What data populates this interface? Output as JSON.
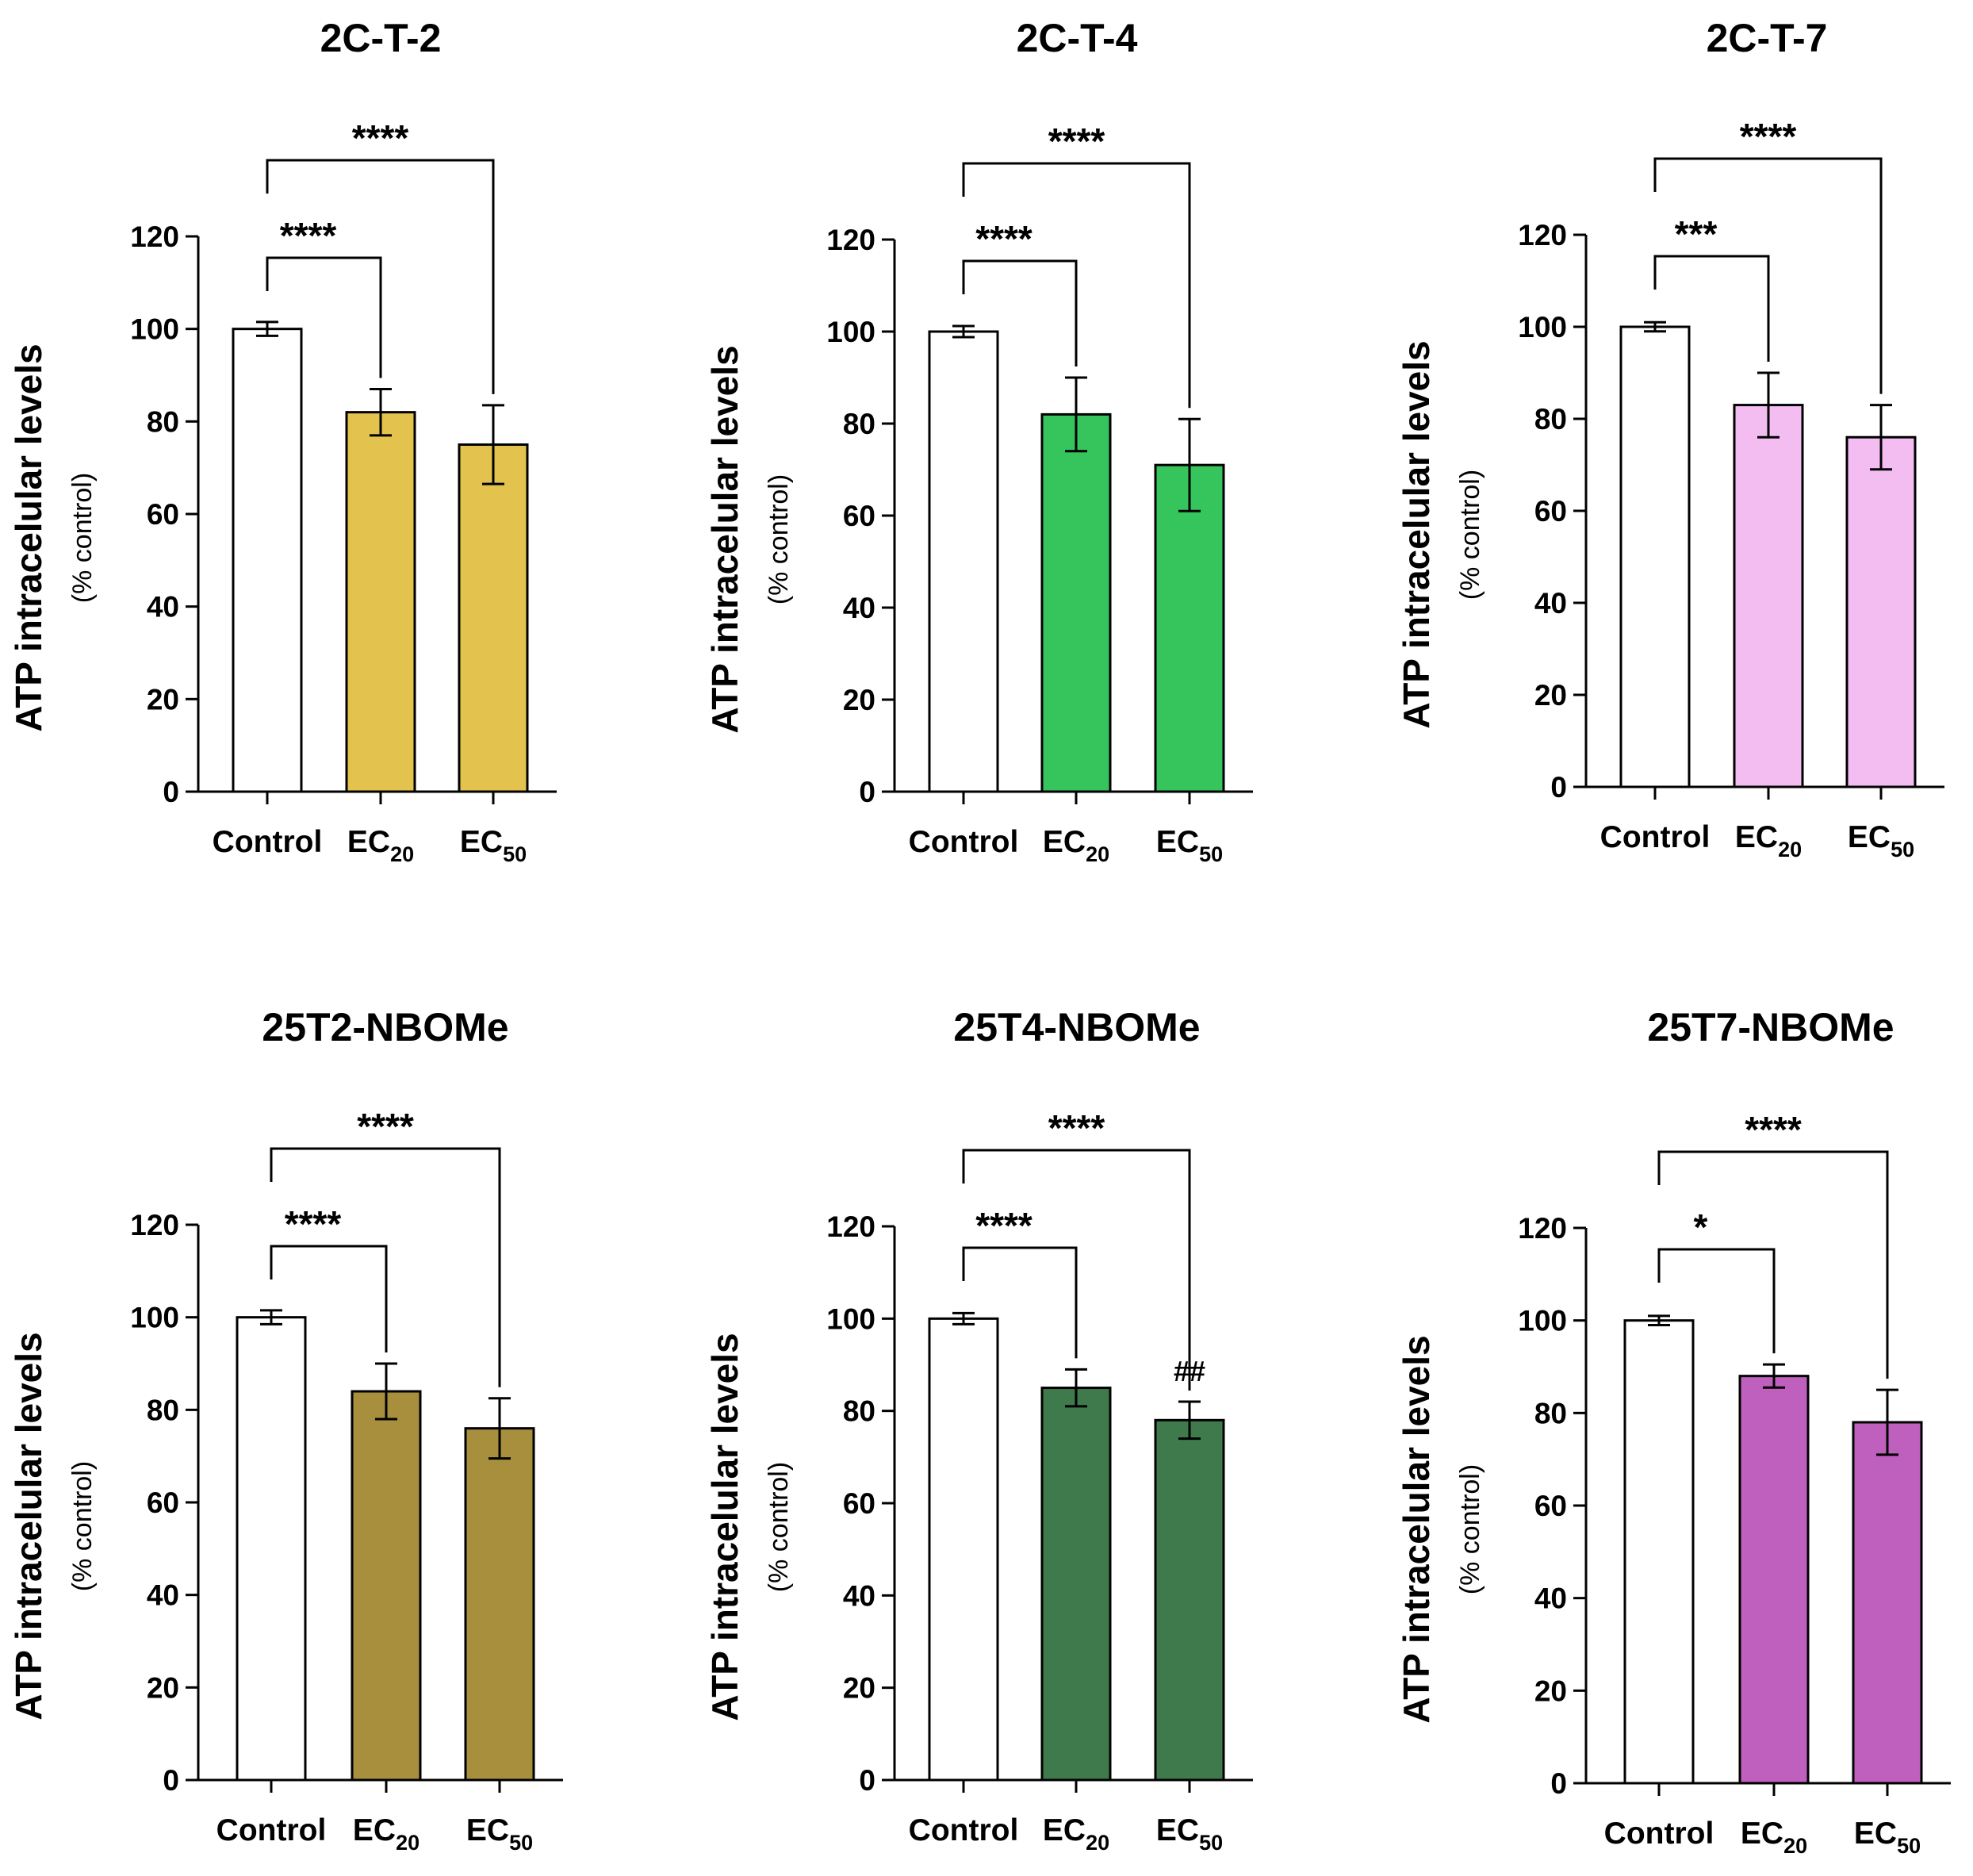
{
  "chart_data": [
    {
      "type": "bar",
      "title": "2C-T-2",
      "ylabel": "ATP intracelular levels",
      "ylabel_sub": "(% control)",
      "ylim": [
        0,
        120
      ],
      "yticks": [
        "0",
        "20",
        "40",
        "60",
        "80",
        "100",
        "120"
      ],
      "categories": [
        {
          "main": "Control",
          "sub": ""
        },
        {
          "main": "EC",
          "sub": "20"
        },
        {
          "main": "EC",
          "sub": "50"
        }
      ],
      "values": [
        100,
        82,
        75
      ],
      "errors": [
        1.5,
        5,
        8.5
      ],
      "colors": [
        "#ffffff",
        "#e3c34e",
        "#e3c34e"
      ],
      "comparisons": [
        {
          "from": 0,
          "to": 1,
          "label": "****"
        },
        {
          "from": 0,
          "to": 2,
          "label": "****"
        }
      ],
      "annotations": []
    },
    {
      "type": "bar",
      "title": "2C-T-4",
      "ylabel": "ATP intracelular levels",
      "ylabel_sub": "(% control)",
      "ylim": [
        0,
        120
      ],
      "yticks": [
        "0",
        "20",
        "40",
        "60",
        "80",
        "100",
        "120"
      ],
      "categories": [
        {
          "main": "Control",
          "sub": ""
        },
        {
          "main": "EC",
          "sub": "20"
        },
        {
          "main": "EC",
          "sub": "50"
        }
      ],
      "values": [
        100,
        82,
        71
      ],
      "errors": [
        1.2,
        8,
        10
      ],
      "colors": [
        "#ffffff",
        "#36c45c",
        "#36c45c"
      ],
      "comparisons": [
        {
          "from": 0,
          "to": 1,
          "label": "****"
        },
        {
          "from": 0,
          "to": 2,
          "label": "****"
        }
      ],
      "annotations": []
    },
    {
      "type": "bar",
      "title": "2C-T-7",
      "ylabel": "ATP intracelular levels",
      "ylabel_sub": "(% control)",
      "ylim": [
        0,
        120
      ],
      "yticks": [
        "0",
        "20",
        "40",
        "60",
        "80",
        "100",
        "120"
      ],
      "categories": [
        {
          "main": "Control",
          "sub": ""
        },
        {
          "main": "EC",
          "sub": "20"
        },
        {
          "main": "EC",
          "sub": "50"
        }
      ],
      "values": [
        100,
        83,
        76
      ],
      "errors": [
        1,
        7,
        7
      ],
      "colors": [
        "#ffffff",
        "#f4bdf2",
        "#f4bdf2"
      ],
      "comparisons": [
        {
          "from": 0,
          "to": 1,
          "label": "***"
        },
        {
          "from": 0,
          "to": 2,
          "label": "****"
        }
      ],
      "annotations": []
    },
    {
      "type": "bar",
      "title": "25T2-NBOMe",
      "ylabel": "ATP intracelular levels",
      "ylabel_sub": "(% control)",
      "ylim": [
        0,
        120
      ],
      "yticks": [
        "0",
        "20",
        "40",
        "60",
        "80",
        "100",
        "120"
      ],
      "categories": [
        {
          "main": "Control",
          "sub": ""
        },
        {
          "main": "EC",
          "sub": "20"
        },
        {
          "main": "EC",
          "sub": "50"
        }
      ],
      "values": [
        100,
        84,
        76
      ],
      "errors": [
        1.5,
        6,
        6.5
      ],
      "colors": [
        "#ffffff",
        "#a88f3e",
        "#a88f3e"
      ],
      "comparisons": [
        {
          "from": 0,
          "to": 1,
          "label": "****"
        },
        {
          "from": 0,
          "to": 2,
          "label": "****"
        }
      ],
      "annotations": []
    },
    {
      "type": "bar",
      "title": "25T4-NBOMe",
      "ylabel": "ATP intracelular levels",
      "ylabel_sub": "(% control)",
      "ylim": [
        0,
        120
      ],
      "yticks": [
        "0",
        "20",
        "40",
        "60",
        "80",
        "100",
        "120"
      ],
      "categories": [
        {
          "main": "Control",
          "sub": ""
        },
        {
          "main": "EC",
          "sub": "20"
        },
        {
          "main": "EC",
          "sub": "50"
        }
      ],
      "values": [
        100,
        85,
        78
      ],
      "errors": [
        1.2,
        4,
        4
      ],
      "colors": [
        "#ffffff",
        "#3e7a4b",
        "#3e7a4b"
      ],
      "comparisons": [
        {
          "from": 0,
          "to": 1,
          "label": "****"
        },
        {
          "from": 0,
          "to": 2,
          "label": "****"
        }
      ],
      "annotations": [
        {
          "bar": 2,
          "label": "##"
        }
      ]
    },
    {
      "type": "bar",
      "title": "25T7-NBOMe",
      "ylabel": "ATP intracelular levels",
      "ylabel_sub": "(% control)",
      "ylim": [
        0,
        120
      ],
      "yticks": [
        "0",
        "20",
        "40",
        "60",
        "80",
        "100",
        "120"
      ],
      "categories": [
        {
          "main": "Control",
          "sub": ""
        },
        {
          "main": "EC",
          "sub": "20"
        },
        {
          "main": "EC",
          "sub": "50"
        }
      ],
      "values": [
        100,
        88,
        78
      ],
      "errors": [
        1,
        2.5,
        7
      ],
      "colors": [
        "#ffffff",
        "#c060be",
        "#c060be"
      ],
      "comparisons": [
        {
          "from": 0,
          "to": 1,
          "label": "*"
        },
        {
          "from": 0,
          "to": 2,
          "label": "****"
        }
      ],
      "annotations": []
    }
  ]
}
